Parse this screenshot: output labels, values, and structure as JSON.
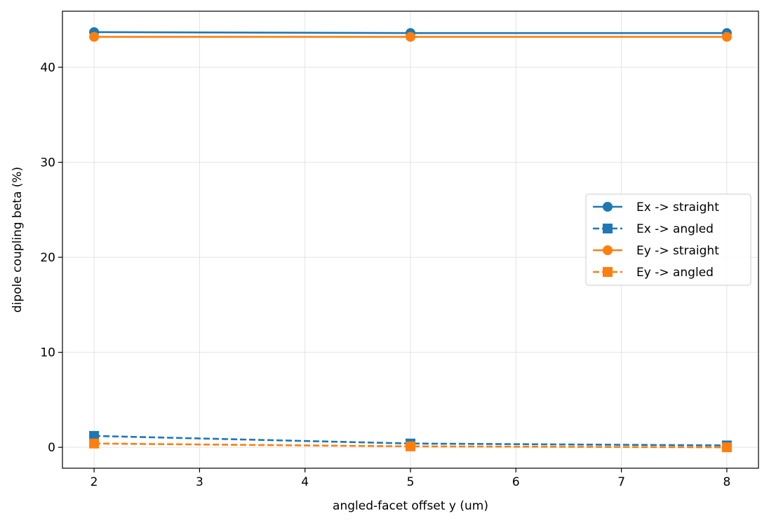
{
  "chart_data": {
    "type": "line",
    "title": "",
    "xlabel": "angled-facet offset y (um)",
    "ylabel": "dipole coupling beta (%)",
    "xlim": [
      1.7,
      8.3
    ],
    "ylim": [
      -2.2,
      45.9
    ],
    "xticks": [
      2,
      3,
      4,
      5,
      6,
      7,
      8
    ],
    "yticks": [
      0,
      10,
      20,
      30,
      40
    ],
    "grid": true,
    "legend_position": "center-right",
    "x": [
      2,
      5,
      8
    ],
    "series": [
      {
        "name": "Ex -> straight",
        "values": [
          43.7,
          43.6,
          43.6
        ],
        "color": "#1f77b4",
        "marker": "circle",
        "linestyle": "solid"
      },
      {
        "name": "Ex -> angled",
        "values": [
          1.2,
          0.4,
          0.2
        ],
        "color": "#1f77b4",
        "marker": "square",
        "linestyle": "dashed"
      },
      {
        "name": "Ey -> straight",
        "values": [
          43.2,
          43.2,
          43.2
        ],
        "color": "#ff7f0e",
        "marker": "circle",
        "linestyle": "solid"
      },
      {
        "name": "Ey -> angled",
        "values": [
          0.4,
          0.1,
          0.0
        ],
        "color": "#ff7f0e",
        "marker": "square",
        "linestyle": "dashed"
      }
    ]
  }
}
